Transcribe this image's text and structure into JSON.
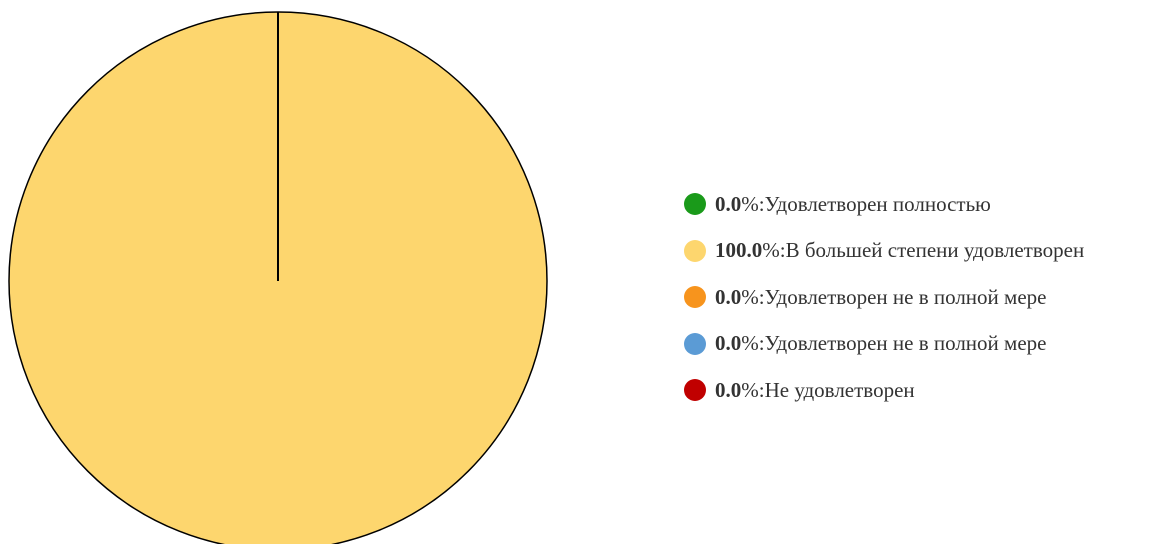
{
  "chart_data": {
    "type": "pie",
    "unit": "%",
    "series": [
      {
        "label": "Удовлетворен полностью",
        "value": 0.0,
        "value_text": "0.0",
        "color": "#1a9a1a"
      },
      {
        "label": "В большей степени удовлетворен",
        "value": 100.0,
        "value_text": "100.0",
        "color": "#fdd66e"
      },
      {
        "label": "Удовлетворен не в полной мере",
        "value": 0.0,
        "value_text": "0.0",
        "color": "#f7941d"
      },
      {
        "label": "Удовлетворен не в полной мере",
        "value": 0.0,
        "value_text": "0.0",
        "color": "#5b9bd5"
      },
      {
        "label": "Не удовлетворен",
        "value": 0.0,
        "value_text": "0.0",
        "color": "#c00000"
      }
    ],
    "legend_position": "right",
    "legend_separator": "%: "
  }
}
